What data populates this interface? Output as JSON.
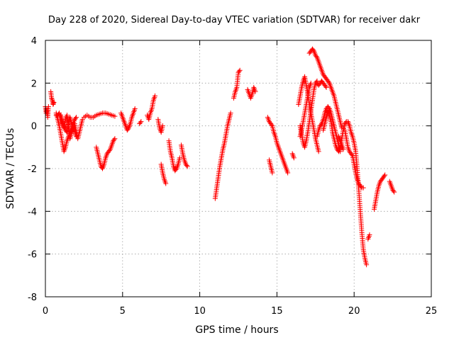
{
  "chart_data": {
    "type": "scatter",
    "title": "Day 228 of 2020, Sidereal Day-to-day VTEC variation (SDTVAR) for receiver dakr",
    "xlabel": "GPS time / hours",
    "ylabel": "SDTVAR / TECUs",
    "xlim": [
      0,
      25
    ],
    "ylim": [
      -8,
      4
    ],
    "xticks": [
      0,
      5,
      10,
      15,
      20,
      25
    ],
    "yticks": [
      -8,
      -6,
      -4,
      -2,
      0,
      2,
      4
    ],
    "grid": true,
    "marker": "+",
    "color": "#ff0000",
    "segments": [
      [
        [
          0.0,
          0.9
        ],
        [
          0.05,
          0.6
        ],
        [
          0.1,
          0.8
        ],
        [
          0.15,
          0.4
        ],
        [
          0.2,
          0.9
        ]
      ],
      [
        [
          0.35,
          1.6
        ],
        [
          0.4,
          1.3
        ],
        [
          0.45,
          1.2
        ],
        [
          0.5,
          1.0
        ],
        [
          0.55,
          1.1
        ]
      ],
      [
        [
          0.7,
          0.6
        ],
        [
          0.8,
          0.3
        ],
        [
          0.9,
          0.0
        ],
        [
          1.0,
          -0.4
        ],
        [
          1.1,
          -0.8
        ],
        [
          1.2,
          -1.2
        ],
        [
          1.3,
          -1.0
        ],
        [
          1.4,
          -0.7
        ],
        [
          1.5,
          -0.5
        ],
        [
          1.6,
          -0.3
        ],
        [
          1.7,
          -0.1
        ],
        [
          1.8,
          0.1
        ],
        [
          1.9,
          0.3
        ],
        [
          2.0,
          0.4
        ]
      ],
      [
        [
          0.7,
          0.5
        ],
        [
          0.8,
          0.5
        ],
        [
          0.9,
          0.6
        ],
        [
          1.0,
          0.3
        ],
        [
          1.1,
          0.1
        ],
        [
          1.2,
          0.0
        ],
        [
          1.3,
          -0.2
        ],
        [
          1.4,
          -0.3
        ],
        [
          1.5,
          0.2
        ],
        [
          1.6,
          0.4
        ],
        [
          1.7,
          0.1
        ],
        [
          1.8,
          -0.1
        ],
        [
          1.9,
          -0.2
        ],
        [
          2.0,
          -0.5
        ]
      ],
      [
        [
          1.0,
          0.5
        ],
        [
          1.1,
          0.2
        ],
        [
          1.2,
          -0.1
        ],
        [
          1.3,
          0.3
        ],
        [
          1.4,
          0.5
        ],
        [
          1.5,
          -0.1
        ],
        [
          1.6,
          -0.6
        ],
        [
          1.7,
          -0.3
        ],
        [
          1.8,
          -0.2
        ],
        [
          1.9,
          0.1
        ],
        [
          2.0,
          -0.3
        ],
        [
          2.1,
          -0.6
        ],
        [
          2.2,
          -0.3
        ],
        [
          2.3,
          0.0
        ],
        [
          2.4,
          0.3
        ]
      ],
      [
        [
          2.5,
          0.4
        ],
        [
          2.7,
          0.5
        ],
        [
          2.9,
          0.4
        ],
        [
          3.1,
          0.4
        ],
        [
          3.3,
          0.5
        ],
        [
          3.5,
          0.55
        ],
        [
          3.7,
          0.6
        ],
        [
          3.9,
          0.6
        ],
        [
          4.1,
          0.55
        ],
        [
          4.3,
          0.5
        ],
        [
          4.5,
          0.45
        ]
      ],
      [
        [
          3.3,
          -1.0
        ],
        [
          3.4,
          -1.3
        ],
        [
          3.5,
          -1.6
        ],
        [
          3.6,
          -1.9
        ],
        [
          3.7,
          -2.0
        ],
        [
          3.8,
          -1.8
        ],
        [
          3.9,
          -1.5
        ],
        [
          4.0,
          -1.3
        ],
        [
          4.1,
          -1.2
        ],
        [
          4.2,
          -1.1
        ],
        [
          4.3,
          -0.9
        ],
        [
          4.4,
          -0.7
        ],
        [
          4.5,
          -0.6
        ]
      ],
      [
        [
          4.9,
          0.6
        ],
        [
          5.0,
          0.4
        ],
        [
          5.1,
          0.2
        ],
        [
          5.2,
          0.0
        ],
        [
          5.3,
          -0.2
        ],
        [
          5.4,
          -0.1
        ],
        [
          5.5,
          0.1
        ],
        [
          5.6,
          0.4
        ],
        [
          5.7,
          0.6
        ],
        [
          5.8,
          0.8
        ]
      ],
      [
        [
          6.1,
          0.1
        ],
        [
          6.2,
          0.2
        ]
      ],
      [
        [
          6.6,
          0.5
        ],
        [
          6.7,
          0.3
        ],
        [
          6.8,
          0.6
        ],
        [
          6.9,
          0.8
        ],
        [
          7.0,
          1.2
        ],
        [
          7.1,
          1.4
        ]
      ],
      [
        [
          7.3,
          0.3
        ],
        [
          7.4,
          -0.1
        ],
        [
          7.5,
          -0.3
        ],
        [
          7.6,
          0.0
        ]
      ],
      [
        [
          7.5,
          -1.8
        ],
        [
          7.6,
          -2.2
        ],
        [
          7.7,
          -2.5
        ],
        [
          7.8,
          -2.7
        ]
      ],
      [
        [
          8.0,
          -0.7
        ],
        [
          8.1,
          -1.2
        ],
        [
          8.2,
          -1.5
        ],
        [
          8.3,
          -1.9
        ],
        [
          8.4,
          -2.1
        ],
        [
          8.5,
          -2.0
        ],
        [
          8.6,
          -1.8
        ],
        [
          8.7,
          -1.5
        ]
      ],
      [
        [
          8.8,
          -0.9
        ],
        [
          8.9,
          -1.3
        ],
        [
          9.0,
          -1.6
        ],
        [
          9.1,
          -1.8
        ],
        [
          9.2,
          -1.9
        ]
      ],
      [
        [
          11.0,
          -3.4
        ],
        [
          11.1,
          -2.9
        ],
        [
          11.2,
          -2.4
        ],
        [
          11.3,
          -1.9
        ],
        [
          11.4,
          -1.5
        ],
        [
          11.5,
          -1.1
        ],
        [
          11.6,
          -0.8
        ],
        [
          11.7,
          -0.4
        ],
        [
          11.8,
          0.0
        ],
        [
          11.9,
          0.3
        ],
        [
          12.0,
          0.6
        ]
      ],
      [
        [
          12.2,
          1.3
        ],
        [
          12.3,
          1.6
        ],
        [
          12.4,
          1.8
        ],
        [
          12.5,
          2.5
        ],
        [
          12.6,
          2.6
        ]
      ],
      [
        [
          13.1,
          1.7
        ],
        [
          13.2,
          1.5
        ],
        [
          13.3,
          1.3
        ],
        [
          13.4,
          1.5
        ],
        [
          13.5,
          1.8
        ],
        [
          13.6,
          1.6
        ]
      ],
      [
        [
          14.4,
          0.4
        ],
        [
          14.5,
          0.2
        ],
        [
          14.6,
          0.1
        ],
        [
          14.7,
          0.0
        ],
        [
          14.8,
          -0.3
        ],
        [
          14.9,
          -0.5
        ],
        [
          15.0,
          -0.8
        ],
        [
          15.1,
          -1.0
        ],
        [
          15.2,
          -1.2
        ],
        [
          15.3,
          -1.4
        ],
        [
          15.4,
          -1.6
        ],
        [
          15.5,
          -1.8
        ],
        [
          15.6,
          -2.0
        ],
        [
          15.7,
          -2.2
        ]
      ],
      [
        [
          14.5,
          -1.6
        ],
        [
          14.6,
          -1.9
        ],
        [
          14.7,
          -2.2
        ]
      ],
      [
        [
          16.0,
          -1.3
        ],
        [
          16.1,
          -1.5
        ]
      ],
      [
        [
          16.4,
          1.0
        ],
        [
          16.5,
          1.4
        ],
        [
          16.6,
          1.8
        ],
        [
          16.7,
          2.1
        ],
        [
          16.8,
          2.3
        ],
        [
          16.9,
          1.9
        ],
        [
          17.0,
          1.5
        ],
        [
          17.1,
          1.0
        ],
        [
          17.2,
          0.6
        ],
        [
          17.3,
          0.2
        ],
        [
          17.4,
          -0.2
        ],
        [
          17.5,
          -0.6
        ],
        [
          17.6,
          -0.9
        ],
        [
          17.7,
          -1.2
        ]
      ],
      [
        [
          16.5,
          0.0
        ],
        [
          16.6,
          -0.4
        ],
        [
          16.7,
          -0.8
        ],
        [
          16.8,
          -1.0
        ],
        [
          16.9,
          -0.7
        ],
        [
          17.0,
          -0.3
        ],
        [
          17.1,
          0.2
        ],
        [
          17.2,
          0.7
        ],
        [
          17.3,
          1.2
        ],
        [
          17.4,
          1.7
        ],
        [
          17.5,
          2.0
        ],
        [
          17.6,
          2.1
        ]
      ],
      [
        [
          16.5,
          -0.5
        ],
        [
          16.6,
          -0.2
        ],
        [
          16.7,
          0.2
        ],
        [
          16.8,
          0.6
        ],
        [
          16.9,
          1.0
        ],
        [
          17.0,
          1.4
        ],
        [
          17.1,
          1.8
        ],
        [
          17.2,
          2.0
        ]
      ],
      [
        [
          17.1,
          3.4
        ],
        [
          17.2,
          3.5
        ],
        [
          17.3,
          3.6
        ],
        [
          17.4,
          3.5
        ],
        [
          17.5,
          3.3
        ],
        [
          17.6,
          3.2
        ],
        [
          17.7,
          3.0
        ],
        [
          17.8,
          2.8
        ],
        [
          17.9,
          2.6
        ],
        [
          18.0,
          2.4
        ],
        [
          18.1,
          2.3
        ],
        [
          18.2,
          2.2
        ],
        [
          18.3,
          2.1
        ],
        [
          18.4,
          2.0
        ],
        [
          18.5,
          1.8
        ],
        [
          18.6,
          1.6
        ],
        [
          18.7,
          1.4
        ],
        [
          18.8,
          1.1
        ],
        [
          18.9,
          0.8
        ],
        [
          19.0,
          0.5
        ],
        [
          19.1,
          0.2
        ],
        [
          19.2,
          -0.1
        ]
      ],
      [
        [
          17.6,
          2.0
        ],
        [
          17.7,
          1.9
        ],
        [
          17.8,
          2.0
        ],
        [
          17.9,
          2.1
        ],
        [
          18.0,
          2.0
        ],
        [
          18.1,
          1.9
        ],
        [
          18.2,
          1.8
        ]
      ],
      [
        [
          17.6,
          -0.5
        ],
        [
          17.7,
          -0.2
        ],
        [
          17.8,
          0.0
        ],
        [
          17.9,
          0.1
        ],
        [
          18.0,
          0.3
        ],
        [
          18.1,
          0.6
        ],
        [
          18.2,
          0.8
        ],
        [
          18.3,
          0.9
        ],
        [
          18.4,
          0.8
        ],
        [
          18.5,
          0.6
        ],
        [
          18.6,
          0.3
        ],
        [
          18.7,
          0.0
        ],
        [
          18.8,
          -0.3
        ],
        [
          18.9,
          -0.6
        ],
        [
          19.0,
          -0.9
        ],
        [
          19.1,
          -1.2
        ]
      ],
      [
        [
          18.0,
          -0.2
        ],
        [
          18.1,
          0.1
        ],
        [
          18.2,
          0.4
        ],
        [
          18.3,
          0.7
        ],
        [
          18.4,
          0.5
        ],
        [
          18.5,
          0.2
        ],
        [
          18.6,
          -0.3
        ],
        [
          18.7,
          -0.6
        ],
        [
          18.8,
          -0.9
        ],
        [
          18.9,
          -1.1
        ],
        [
          19.0,
          -1.2
        ],
        [
          19.1,
          -1.0
        ],
        [
          19.2,
          -0.6
        ],
        [
          19.3,
          -0.2
        ],
        [
          19.4,
          0.1
        ],
        [
          19.5,
          0.2
        ]
      ],
      [
        [
          19.4,
          -0.2
        ],
        [
          19.5,
          -0.6
        ],
        [
          19.6,
          -1.0
        ],
        [
          19.7,
          -1.2
        ],
        [
          19.8,
          -1.3
        ],
        [
          19.9,
          -1.4
        ],
        [
          20.0,
          -1.8
        ],
        [
          20.1,
          -2.2
        ],
        [
          20.2,
          -2.5
        ],
        [
          20.3,
          -2.7
        ],
        [
          20.4,
          -2.8
        ],
        [
          20.5,
          -2.9
        ],
        [
          20.6,
          -2.9
        ]
      ],
      [
        [
          19.6,
          0.2
        ],
        [
          19.7,
          0.0
        ],
        [
          19.8,
          -0.3
        ],
        [
          19.9,
          -0.5
        ],
        [
          20.0,
          -0.8
        ],
        [
          20.1,
          -1.2
        ],
        [
          20.2,
          -2.0
        ],
        [
          20.3,
          -3.0
        ],
        [
          20.4,
          -4.0
        ],
        [
          20.5,
          -5.0
        ],
        [
          20.6,
          -5.8
        ],
        [
          20.7,
          -6.2
        ],
        [
          20.8,
          -6.5
        ]
      ],
      [
        [
          19.0,
          -0.5
        ],
        [
          19.1,
          -0.7
        ],
        [
          19.2,
          -0.9
        ],
        [
          19.3,
          -1.1
        ]
      ],
      [
        [
          20.9,
          -5.3
        ],
        [
          21.0,
          -5.1
        ]
      ],
      [
        [
          21.3,
          -3.9
        ],
        [
          21.4,
          -3.5
        ],
        [
          21.5,
          -3.1
        ],
        [
          21.6,
          -2.8
        ],
        [
          21.7,
          -2.6
        ],
        [
          21.8,
          -2.5
        ],
        [
          21.9,
          -2.4
        ],
        [
          22.0,
          -2.3
        ]
      ],
      [
        [
          22.3,
          -2.6
        ],
        [
          22.4,
          -2.8
        ],
        [
          22.5,
          -3.0
        ],
        [
          22.6,
          -3.1
        ]
      ]
    ]
  }
}
